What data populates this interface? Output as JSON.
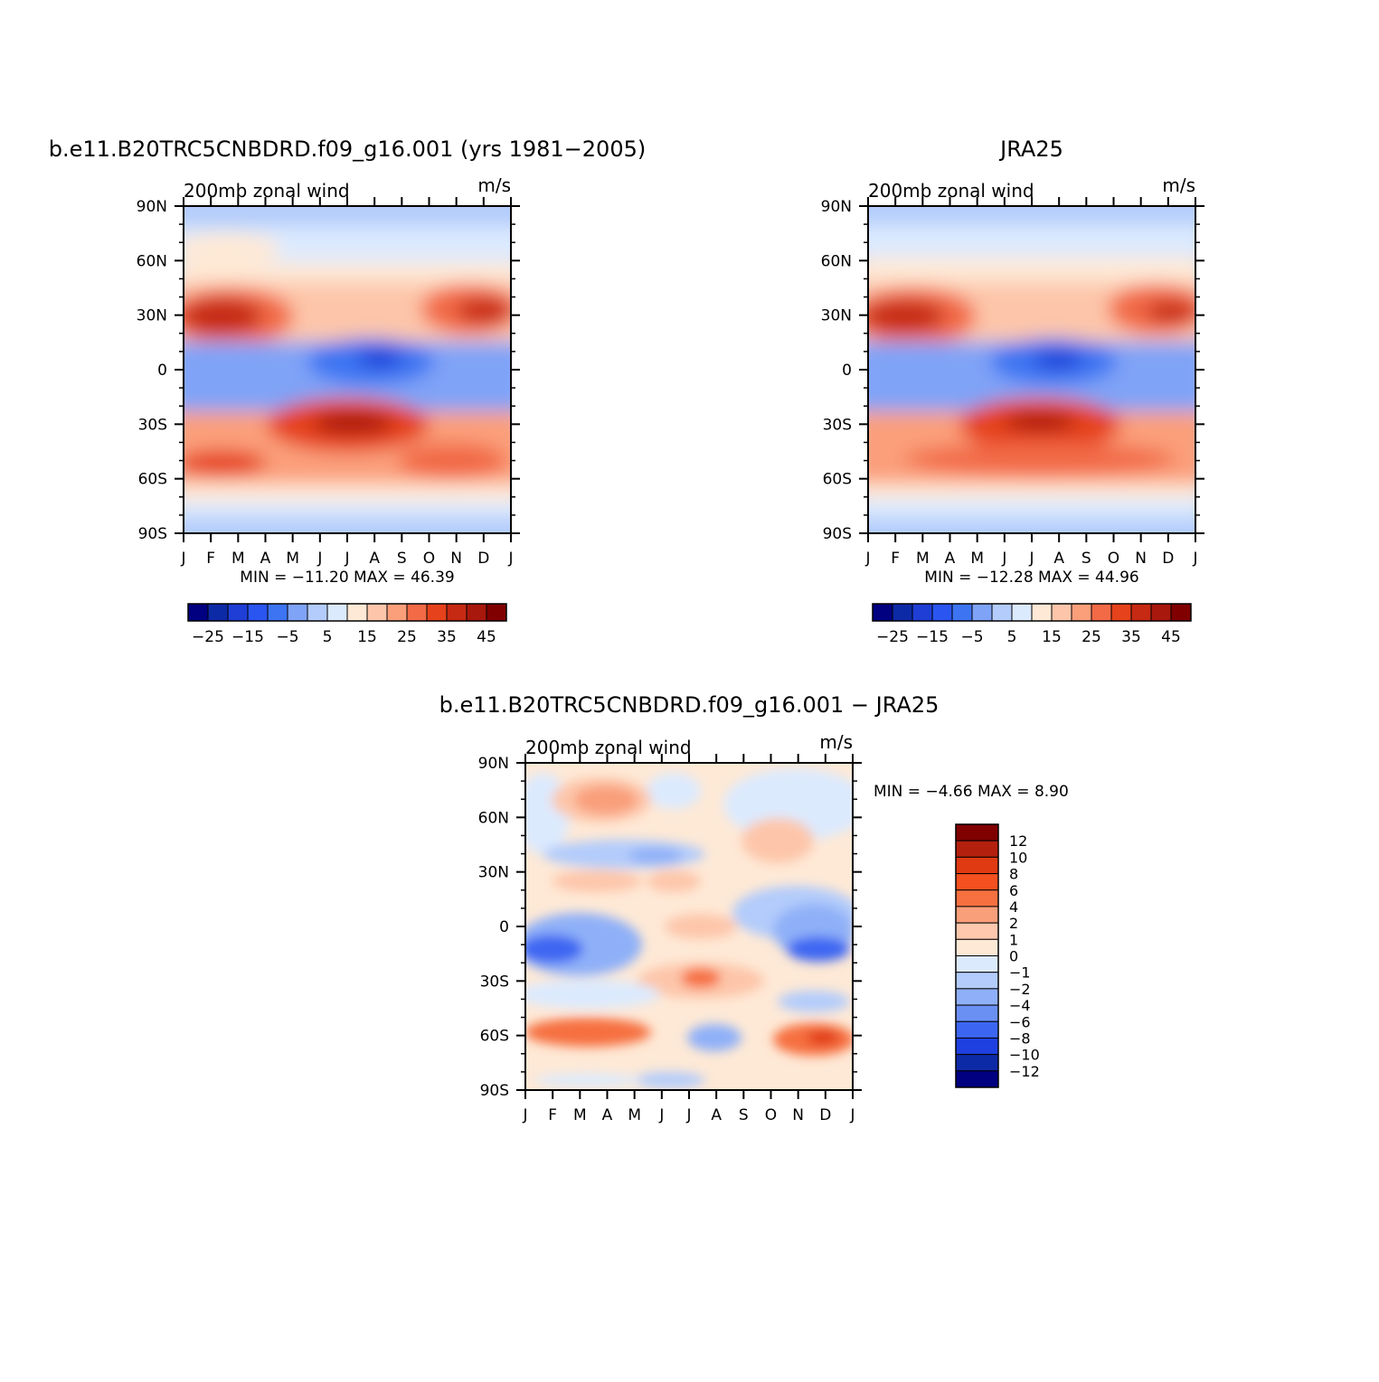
{
  "chart_data": [
    {
      "type": "heatmap",
      "title": "b.e11.B20TRC5CNBDRD.f09_g16.001 (yrs 1981−2005)",
      "subtitle_left": "200mb zonal wind",
      "subtitle_right": "m/s",
      "stats": "MIN = −11.20 MAX = 46.39",
      "x_ticks": [
        "J",
        "F",
        "M",
        "A",
        "M",
        "J",
        "J",
        "A",
        "S",
        "O",
        "N",
        "D",
        "J"
      ],
      "y_ticks": [
        "90N",
        "60N",
        "30N",
        "0",
        "30S",
        "60S",
        "90S"
      ],
      "colorbar": {
        "orientation": "horizontal",
        "colors": [
          "#000080",
          "#0d2aa6",
          "#1e3ed6",
          "#2a55f0",
          "#3c74f2",
          "#7fa3f7",
          "#b3ccfb",
          "#dceafe",
          "#fee9d6",
          "#fdc6aa",
          "#fb9f7a",
          "#f26a46",
          "#e6421c",
          "#c62a12",
          "#a8180c",
          "#800000"
        ],
        "labels": [
          "−25",
          "−15",
          "−5",
          "5",
          "15",
          "25",
          "35",
          "45"
        ]
      }
    },
    {
      "type": "heatmap",
      "title": "JRA25",
      "subtitle_left": "200mb zonal wind",
      "subtitle_right": "m/s",
      "stats": "MIN = −12.28 MAX = 44.96",
      "x_ticks": [
        "J",
        "F",
        "M",
        "A",
        "M",
        "J",
        "J",
        "A",
        "S",
        "O",
        "N",
        "D",
        "J"
      ],
      "y_ticks": [
        "90N",
        "60N",
        "30N",
        "0",
        "30S",
        "60S",
        "90S"
      ],
      "colorbar": {
        "orientation": "horizontal",
        "colors": [
          "#000080",
          "#0d2aa6",
          "#1e3ed6",
          "#2a55f0",
          "#3c74f2",
          "#7fa3f7",
          "#b3ccfb",
          "#dceafe",
          "#fee9d6",
          "#fdc6aa",
          "#fb9f7a",
          "#f26a46",
          "#e6421c",
          "#c62a12",
          "#a8180c",
          "#800000"
        ],
        "labels": [
          "−25",
          "−15",
          "−5",
          "5",
          "15",
          "25",
          "35",
          "45"
        ]
      }
    },
    {
      "type": "heatmap",
      "title": "b.e11.B20TRC5CNBDRD.f09_g16.001 − JRA25",
      "subtitle_left": "200mb zonal wind",
      "subtitle_right": "m/s",
      "stats": "MIN = −4.66 MAX = 8.90",
      "x_ticks": [
        "J",
        "F",
        "M",
        "A",
        "M",
        "J",
        "J",
        "A",
        "S",
        "O",
        "N",
        "D",
        "J"
      ],
      "y_ticks": [
        "90N",
        "60N",
        "30N",
        "0",
        "30S",
        "60S",
        "90S"
      ],
      "colorbar": {
        "orientation": "vertical",
        "colors": [
          "#800000",
          "#b4200e",
          "#e03a12",
          "#f45020",
          "#f67040",
          "#f99f7a",
          "#fdc8ae",
          "#fee9d6",
          "#dceafe",
          "#b3ccfb",
          "#8fb0f8",
          "#6a90f4",
          "#3c66f2",
          "#1e40e0",
          "#0d2aa6",
          "#000080"
        ],
        "labels": [
          "12",
          "10",
          "8",
          "6",
          "4",
          "2",
          "1",
          "0",
          "−1",
          "−2",
          "−4",
          "−6",
          "−8",
          "−10",
          "−12"
        ]
      }
    }
  ]
}
